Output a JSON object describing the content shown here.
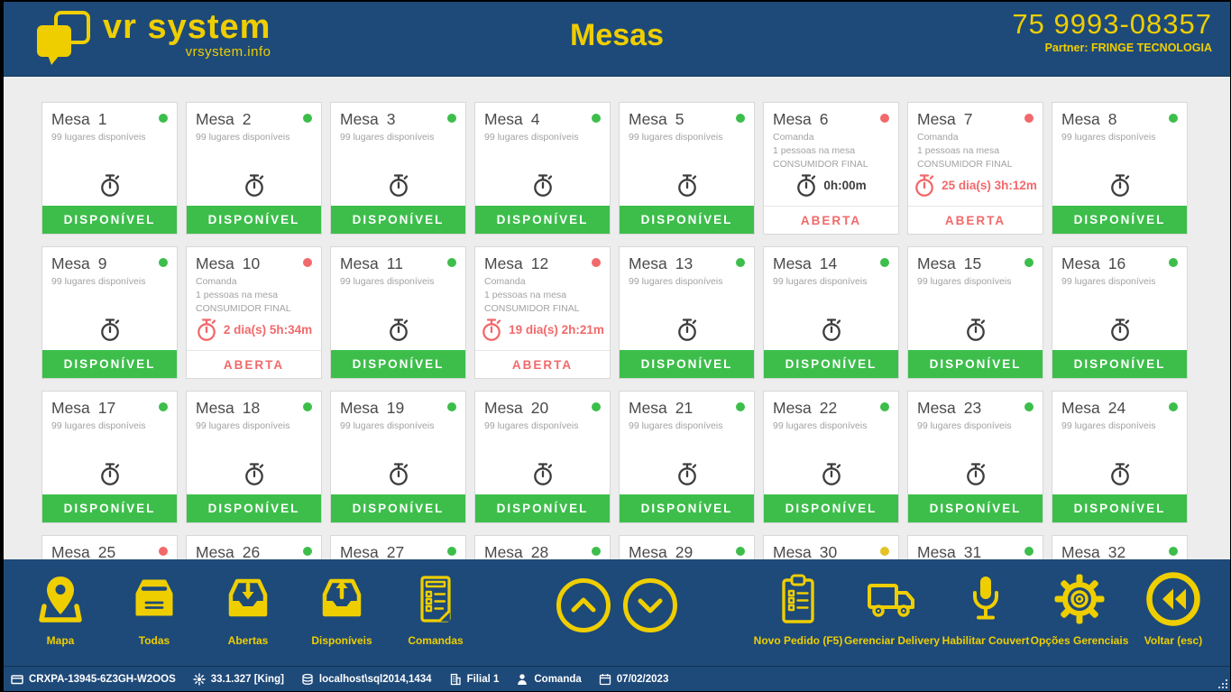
{
  "header": {
    "logo_title": "vr system",
    "logo_subtitle": "vrsystem.info",
    "page_title": "Mesas",
    "phone": "75 9993-08357",
    "partner": "Partner: FRINGE TECNOLOGIA"
  },
  "colors": {
    "brand_blue": "#1e4a79",
    "brand_yellow": "#efce00",
    "available_green": "#3dbe4b",
    "open_red": "#f2696b",
    "reserved_yellow": "#e3c325",
    "page_background": "#ededed"
  },
  "card_labels": {
    "title_prefix": "Mesa"
  },
  "tables": [
    {
      "number": "1",
      "icon": "green",
      "info": [
        "99 lugares disponíveis"
      ],
      "timer": "",
      "timer_style": "dark",
      "banner": "DISPONÍVEL",
      "banner_style": "available"
    },
    {
      "number": "2",
      "icon": "green",
      "info": [
        "99 lugares disponíveis"
      ],
      "timer": "",
      "timer_style": "dark",
      "banner": "DISPONÍVEL",
      "banner_style": "available"
    },
    {
      "number": "3",
      "icon": "green",
      "info": [
        "99 lugares disponíveis"
      ],
      "timer": "",
      "timer_style": "dark",
      "banner": "DISPONÍVEL",
      "banner_style": "available"
    },
    {
      "number": "4",
      "icon": "green",
      "info": [
        "99 lugares disponíveis"
      ],
      "timer": "",
      "timer_style": "dark",
      "banner": "DISPONÍVEL",
      "banner_style": "available"
    },
    {
      "number": "5",
      "icon": "green",
      "info": [
        "99 lugares disponíveis"
      ],
      "timer": "",
      "timer_style": "dark",
      "banner": "DISPONÍVEL",
      "banner_style": "available"
    },
    {
      "number": "6",
      "icon": "red",
      "info": [
        "Comanda",
        "1 pessoas na mesa",
        "CONSUMIDOR FINAL"
      ],
      "timer": "0h:00m",
      "timer_style": "dark",
      "banner": "ABERTA",
      "banner_style": "open"
    },
    {
      "number": "7",
      "icon": "red",
      "info": [
        "Comanda",
        "1 pessoas na mesa",
        "CONSUMIDOR FINAL"
      ],
      "timer": "25 dia(s) 3h:12m",
      "timer_style": "red",
      "banner": "ABERTA",
      "banner_style": "open"
    },
    {
      "number": "8",
      "icon": "green",
      "info": [
        "99 lugares disponíveis"
      ],
      "timer": "",
      "timer_style": "dark",
      "banner": "DISPONÍVEL",
      "banner_style": "available"
    },
    {
      "number": "9",
      "icon": "green",
      "info": [
        "99 lugares disponíveis"
      ],
      "timer": "",
      "timer_style": "dark",
      "banner": "DISPONÍVEL",
      "banner_style": "available"
    },
    {
      "number": "10",
      "icon": "red",
      "info": [
        "Comanda",
        "1 pessoas na mesa",
        "CONSUMIDOR FINAL"
      ],
      "timer": "2 dia(s) 5h:34m",
      "timer_style": "red",
      "banner": "ABERTA",
      "banner_style": "open"
    },
    {
      "number": "11",
      "icon": "green",
      "info": [
        "99 lugares disponíveis"
      ],
      "timer": "",
      "timer_style": "dark",
      "banner": "DISPONÍVEL",
      "banner_style": "available"
    },
    {
      "number": "12",
      "icon": "red",
      "info": [
        "Comanda",
        "1 pessoas na mesa",
        "CONSUMIDOR FINAL"
      ],
      "timer": "19 dia(s) 2h:21m",
      "timer_style": "red",
      "banner": "ABERTA",
      "banner_style": "open"
    },
    {
      "number": "13",
      "icon": "green",
      "info": [
        "99 lugares disponíveis"
      ],
      "timer": "",
      "timer_style": "dark",
      "banner": "DISPONÍVEL",
      "banner_style": "available"
    },
    {
      "number": "14",
      "icon": "green",
      "info": [
        "99 lugares disponíveis"
      ],
      "timer": "",
      "timer_style": "dark",
      "banner": "DISPONÍVEL",
      "banner_style": "available"
    },
    {
      "number": "15",
      "icon": "green",
      "info": [
        "99 lugares disponíveis"
      ],
      "timer": "",
      "timer_style": "dark",
      "banner": "DISPONÍVEL",
      "banner_style": "available"
    },
    {
      "number": "16",
      "icon": "green",
      "info": [
        "99 lugares disponíveis"
      ],
      "timer": "",
      "timer_style": "dark",
      "banner": "DISPONÍVEL",
      "banner_style": "available"
    },
    {
      "number": "17",
      "icon": "green",
      "info": [
        "99 lugares disponíveis"
      ],
      "timer": "",
      "timer_style": "dark",
      "banner": "DISPONÍVEL",
      "banner_style": "available"
    },
    {
      "number": "18",
      "icon": "green",
      "info": [
        "99 lugares disponíveis"
      ],
      "timer": "",
      "timer_style": "dark",
      "banner": "DISPONÍVEL",
      "banner_style": "available"
    },
    {
      "number": "19",
      "icon": "green",
      "info": [
        "99 lugares disponíveis"
      ],
      "timer": "",
      "timer_style": "dark",
      "banner": "DISPONÍVEL",
      "banner_style": "available"
    },
    {
      "number": "20",
      "icon": "green",
      "info": [
        "99 lugares disponíveis"
      ],
      "timer": "",
      "timer_style": "dark",
      "banner": "DISPONÍVEL",
      "banner_style": "available"
    },
    {
      "number": "21",
      "icon": "green",
      "info": [
        "99 lugares disponíveis"
      ],
      "timer": "",
      "timer_style": "dark",
      "banner": "DISPONÍVEL",
      "banner_style": "available"
    },
    {
      "number": "22",
      "icon": "green",
      "info": [
        "99 lugares disponíveis"
      ],
      "timer": "",
      "timer_style": "dark",
      "banner": "DISPONÍVEL",
      "banner_style": "available"
    },
    {
      "number": "23",
      "icon": "green",
      "info": [
        "99 lugares disponíveis"
      ],
      "timer": "",
      "timer_style": "dark",
      "banner": "DISPONÍVEL",
      "banner_style": "available"
    },
    {
      "number": "24",
      "icon": "green",
      "info": [
        "99 lugares disponíveis"
      ],
      "timer": "",
      "timer_style": "dark",
      "banner": "DISPONÍVEL",
      "banner_style": "available"
    },
    {
      "number": "25",
      "icon": "red",
      "info": [],
      "clipped": true
    },
    {
      "number": "26",
      "icon": "green",
      "info": [],
      "clipped": true
    },
    {
      "number": "27",
      "icon": "green",
      "info": [],
      "clipped": true
    },
    {
      "number": "28",
      "icon": "green",
      "info": [],
      "clipped": true
    },
    {
      "number": "29",
      "icon": "green",
      "info": [],
      "clipped": true
    },
    {
      "number": "30",
      "icon": "yellow",
      "info": [],
      "clipped": true
    },
    {
      "number": "31",
      "icon": "green",
      "info": [],
      "clipped": true
    },
    {
      "number": "32",
      "icon": "green",
      "info": [],
      "clipped": true
    }
  ],
  "toolbar": {
    "left_items": [
      {
        "label": "Mapa",
        "icon": "map-pin-icon"
      },
      {
        "label": "Todas",
        "icon": "inbox-tray-icon"
      },
      {
        "label": "Abertas",
        "icon": "inbox-arrow-down-icon"
      },
      {
        "label": "Disponíveis",
        "icon": "inbox-arrow-up-icon"
      },
      {
        "label": "Comandas",
        "icon": "document-list-icon"
      }
    ],
    "scroll_buttons": [
      {
        "icon": "chevron-up-circle-icon"
      },
      {
        "icon": "chevron-down-circle-icon"
      }
    ],
    "right_items": [
      {
        "label": "Novo Pedido (F5)",
        "icon": "clipboard-icon"
      },
      {
        "label": "Gerenciar Delivery",
        "icon": "truck-icon"
      },
      {
        "label": "Habilitar Couvert",
        "icon": "microphone-icon"
      },
      {
        "label": "Opções Gerenciais",
        "icon": "gear-icon"
      },
      {
        "label": "Voltar (esc)",
        "icon": "rewind-circle-icon"
      }
    ]
  },
  "statusbar": {
    "items": [
      {
        "icon": "terminal-icon",
        "text": "CRXPA-13945-6Z3GH-W2OOS"
      },
      {
        "icon": "version-icon",
        "text": "33.1.327 [King]"
      },
      {
        "icon": "database-icon",
        "text": "localhost\\sql2014,1434"
      },
      {
        "icon": "branch-icon",
        "text": "Filial 1"
      },
      {
        "icon": "user-icon",
        "text": "Comanda"
      },
      {
        "icon": "calendar-icon",
        "text": "07/02/2023"
      }
    ]
  }
}
